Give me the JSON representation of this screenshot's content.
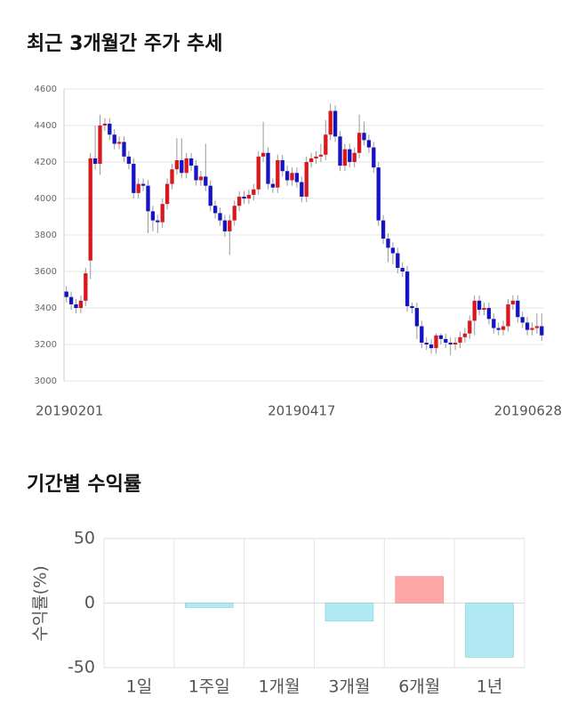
{
  "chart_data": [
    {
      "type": "candlestick",
      "title": "최근 3개월간 주가 추세",
      "categories": [
        "20190201",
        null,
        null,
        null,
        null,
        null,
        null,
        null,
        null,
        null,
        null,
        null,
        null,
        null,
        null,
        null,
        null,
        null,
        null,
        null,
        null,
        null,
        null,
        null,
        null,
        null,
        null,
        null,
        null,
        null,
        null,
        null,
        null,
        null,
        null,
        null,
        null,
        null,
        null,
        null,
        null,
        null,
        null,
        null,
        null,
        null,
        null,
        null,
        null,
        "20190417",
        null,
        null,
        null,
        null,
        null,
        null,
        null,
        null,
        null,
        null,
        null,
        null,
        null,
        null,
        null,
        null,
        null,
        null,
        null,
        null,
        null,
        null,
        null,
        null,
        null,
        null,
        null,
        null,
        null,
        null,
        null,
        null,
        null,
        null,
        null,
        null,
        null,
        null,
        null,
        null,
        null,
        null,
        null,
        null,
        null,
        null,
        null,
        null,
        null,
        "20190628"
      ],
      "open": [
        3490,
        3460,
        3420,
        3400,
        3440,
        3660,
        4220,
        4190,
        4400,
        4410,
        4350,
        4300,
        4310,
        4230,
        4190,
        4030,
        4080,
        4070,
        3930,
        3880,
        3870,
        3970,
        4080,
        4160,
        4210,
        4140,
        4220,
        4180,
        4100,
        4120,
        4070,
        3960,
        3920,
        3880,
        3820,
        3880,
        3960,
        4010,
        4000,
        4020,
        4050,
        4230,
        4250,
        4080,
        4060,
        4210,
        4150,
        4100,
        4140,
        4090,
        4010,
        4200,
        4220,
        4230,
        4240,
        4350,
        4480,
        4340,
        4180,
        4270,
        4200,
        4250,
        4360,
        4320,
        4280,
        4170,
        3880,
        3780,
        3730,
        3700,
        3620,
        3600,
        3410,
        3400,
        3300,
        3210,
        3200,
        3180,
        3250,
        3230,
        3210,
        3200,
        3210,
        3240,
        3260,
        3330,
        3440,
        3390,
        3400,
        3340,
        3290,
        3280,
        3300,
        3420,
        3440,
        3350,
        3320,
        3280,
        3290,
        3300
      ],
      "high": [
        3520,
        3490,
        3450,
        3470,
        3620,
        4250,
        4400,
        4460,
        4440,
        4440,
        4380,
        4340,
        4340,
        4260,
        4220,
        4110,
        4110,
        4100,
        3960,
        3910,
        4000,
        4110,
        4190,
        4330,
        4330,
        4250,
        4250,
        4210,
        4150,
        4300,
        4100,
        3990,
        3950,
        3910,
        3910,
        3990,
        4040,
        4040,
        4050,
        4080,
        4260,
        4420,
        4280,
        4110,
        4240,
        4240,
        4180,
        4170,
        4170,
        4120,
        4230,
        4250,
        4260,
        4300,
        4430,
        4520,
        4510,
        4370,
        4300,
        4300,
        4280,
        4460,
        4420,
        4350,
        4310,
        4200,
        3910,
        3810,
        3760,
        3730,
        3650,
        3630,
        3430,
        3430,
        3330,
        3240,
        3230,
        3260,
        3260,
        3260,
        3240,
        3240,
        3270,
        3290,
        3360,
        3470,
        3470,
        3430,
        3430,
        3370,
        3320,
        3330,
        3450,
        3470,
        3470,
        3380,
        3350,
        3320,
        3370,
        3370
      ],
      "low": [
        3430,
        3390,
        3370,
        3370,
        3410,
        3560,
        4160,
        4130,
        4370,
        4320,
        4270,
        4270,
        4200,
        4160,
        4000,
        4000,
        4040,
        3810,
        3820,
        3810,
        3840,
        3940,
        4050,
        4130,
        4110,
        4110,
        4150,
        4070,
        4070,
        4040,
        3930,
        3890,
        3850,
        3790,
        3690,
        3850,
        3930,
        3970,
        3970,
        3990,
        4020,
        4200,
        4050,
        4030,
        4030,
        4120,
        4070,
        4070,
        4060,
        3980,
        3980,
        4170,
        4190,
        4200,
        4210,
        4320,
        4310,
        4150,
        4150,
        4170,
        4170,
        4220,
        4290,
        4250,
        4140,
        3850,
        3750,
        3650,
        3640,
        3590,
        3570,
        3380,
        3370,
        3230,
        3180,
        3170,
        3150,
        3150,
        3200,
        3180,
        3140,
        3170,
        3180,
        3210,
        3230,
        3250,
        3360,
        3360,
        3310,
        3260,
        3250,
        3250,
        3270,
        3390,
        3320,
        3290,
        3250,
        3250,
        3260,
        3220
      ],
      "close": [
        3460,
        3420,
        3400,
        3440,
        3590,
        4220,
        4190,
        4400,
        4410,
        4350,
        4300,
        4310,
        4230,
        4190,
        4030,
        4080,
        4070,
        3930,
        3880,
        3870,
        3970,
        4080,
        4160,
        4210,
        4140,
        4220,
        4180,
        4100,
        4120,
        4070,
        3960,
        3920,
        3880,
        3820,
        3880,
        3960,
        4010,
        4000,
        4020,
        4050,
        4230,
        4250,
        4080,
        4060,
        4210,
        4150,
        4100,
        4140,
        4090,
        4010,
        4200,
        4220,
        4230,
        4240,
        4350,
        4480,
        4340,
        4180,
        4270,
        4200,
        4250,
        4360,
        4320,
        4280,
        4170,
        3880,
        3780,
        3730,
        3700,
        3620,
        3600,
        3410,
        3400,
        3300,
        3210,
        3200,
        3180,
        3250,
        3230,
        3210,
        3200,
        3210,
        3240,
        3260,
        3330,
        3440,
        3390,
        3400,
        3340,
        3290,
        3280,
        3300,
        3420,
        3440,
        3350,
        3320,
        3280,
        3290,
        3300,
        3250
      ],
      "up_color": "#d9181e",
      "down_color": "#1414c4",
      "wick_color": "#9a9a9a",
      "ylim": [
        3000,
        4600
      ],
      "yticks": [
        3000,
        3200,
        3400,
        3600,
        3800,
        4000,
        4200,
        4400,
        4600
      ],
      "grid": true
    },
    {
      "type": "bar",
      "title": "기간별 수익률",
      "y_label": "수익률(%)",
      "categories": [
        "1일",
        "1주일",
        "1개월",
        "3개월",
        "6개월",
        "1년"
      ],
      "values": [
        0,
        -3.4,
        0,
        -14,
        20.6,
        -42
      ],
      "positive_color": "#ffa6a6",
      "negative_color": "#b0e9f3",
      "ylim": [
        -50,
        50
      ],
      "yticks": [
        -50,
        0,
        50
      ],
      "grid": true
    }
  ]
}
